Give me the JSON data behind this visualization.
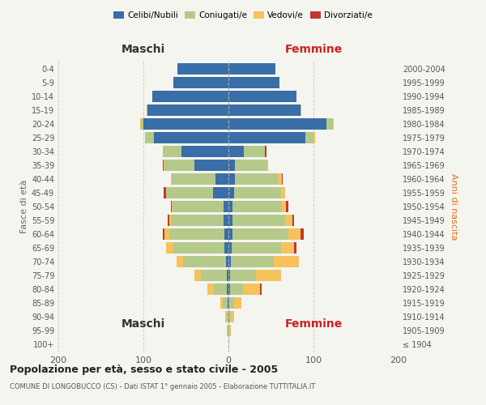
{
  "age_groups": [
    "100+",
    "95-99",
    "90-94",
    "85-89",
    "80-84",
    "75-79",
    "70-74",
    "65-69",
    "60-64",
    "55-59",
    "50-54",
    "45-49",
    "40-44",
    "35-39",
    "30-34",
    "25-29",
    "20-24",
    "15-19",
    "10-14",
    "5-9",
    "0-4"
  ],
  "birth_years": [
    "≤ 1904",
    "1905-1909",
    "1910-1914",
    "1915-1919",
    "1920-1924",
    "1925-1929",
    "1930-1934",
    "1935-1939",
    "1940-1944",
    "1945-1949",
    "1950-1954",
    "1955-1959",
    "1960-1964",
    "1965-1969",
    "1970-1974",
    "1975-1979",
    "1980-1984",
    "1985-1989",
    "1990-1994",
    "1995-1999",
    "2000-2004"
  ],
  "maschi_celibi": [
    0,
    0,
    0,
    1,
    2,
    2,
    3,
    5,
    5,
    6,
    6,
    18,
    15,
    40,
    55,
    88,
    100,
    95,
    90,
    65,
    60
  ],
  "maschi_coniugati": [
    0,
    1,
    2,
    6,
    15,
    30,
    50,
    60,
    65,
    62,
    60,
    55,
    52,
    35,
    22,
    10,
    3,
    1,
    0,
    0,
    0
  ],
  "maschi_vedovi": [
    0,
    1,
    2,
    3,
    8,
    8,
    8,
    8,
    5,
    2,
    1,
    0,
    1,
    1,
    0,
    0,
    1,
    0,
    0,
    0,
    0
  ],
  "maschi_divorziati": [
    0,
    0,
    0,
    0,
    0,
    0,
    0,
    0,
    2,
    1,
    1,
    3,
    0,
    1,
    0,
    0,
    0,
    0,
    0,
    0,
    0
  ],
  "femmine_nubili": [
    0,
    0,
    1,
    1,
    2,
    2,
    3,
    4,
    5,
    5,
    5,
    7,
    8,
    8,
    18,
    90,
    115,
    85,
    80,
    60,
    55
  ],
  "femmine_coniugate": [
    0,
    1,
    2,
    6,
    15,
    30,
    50,
    58,
    65,
    62,
    58,
    55,
    50,
    38,
    25,
    10,
    8,
    1,
    0,
    0,
    0
  ],
  "femmine_vedove": [
    0,
    2,
    4,
    8,
    20,
    30,
    30,
    15,
    15,
    8,
    5,
    5,
    5,
    1,
    0,
    2,
    1,
    0,
    0,
    0,
    0
  ],
  "femmine_divorziate": [
    0,
    0,
    0,
    0,
    2,
    0,
    0,
    3,
    4,
    2,
    2,
    0,
    1,
    0,
    2,
    0,
    0,
    0,
    0,
    0,
    0
  ],
  "colors": {
    "celibi": "#3a6ea8",
    "coniugati": "#b5c98b",
    "vedovi": "#f5c25c",
    "divorziati": "#c0392b"
  },
  "xlim": 200,
  "title": "Popolazione per età, sesso e stato civile - 2005",
  "subtitle": "COMUNE DI LONGOBUCCO (CS) - Dati ISTAT 1° gennaio 2005 - Elaborazione TUTTITALIA.IT",
  "ylabel_left": "Fasce di età",
  "ylabel_right": "Anni di nascita",
  "label_maschi": "Maschi",
  "label_femmine": "Femmine",
  "legend_labels": [
    "Celibi/Nubili",
    "Coniugati/e",
    "Vedovi/e",
    "Divorziati/e"
  ],
  "bg_color": "#f5f5f0",
  "grid_color": "#cccccc"
}
